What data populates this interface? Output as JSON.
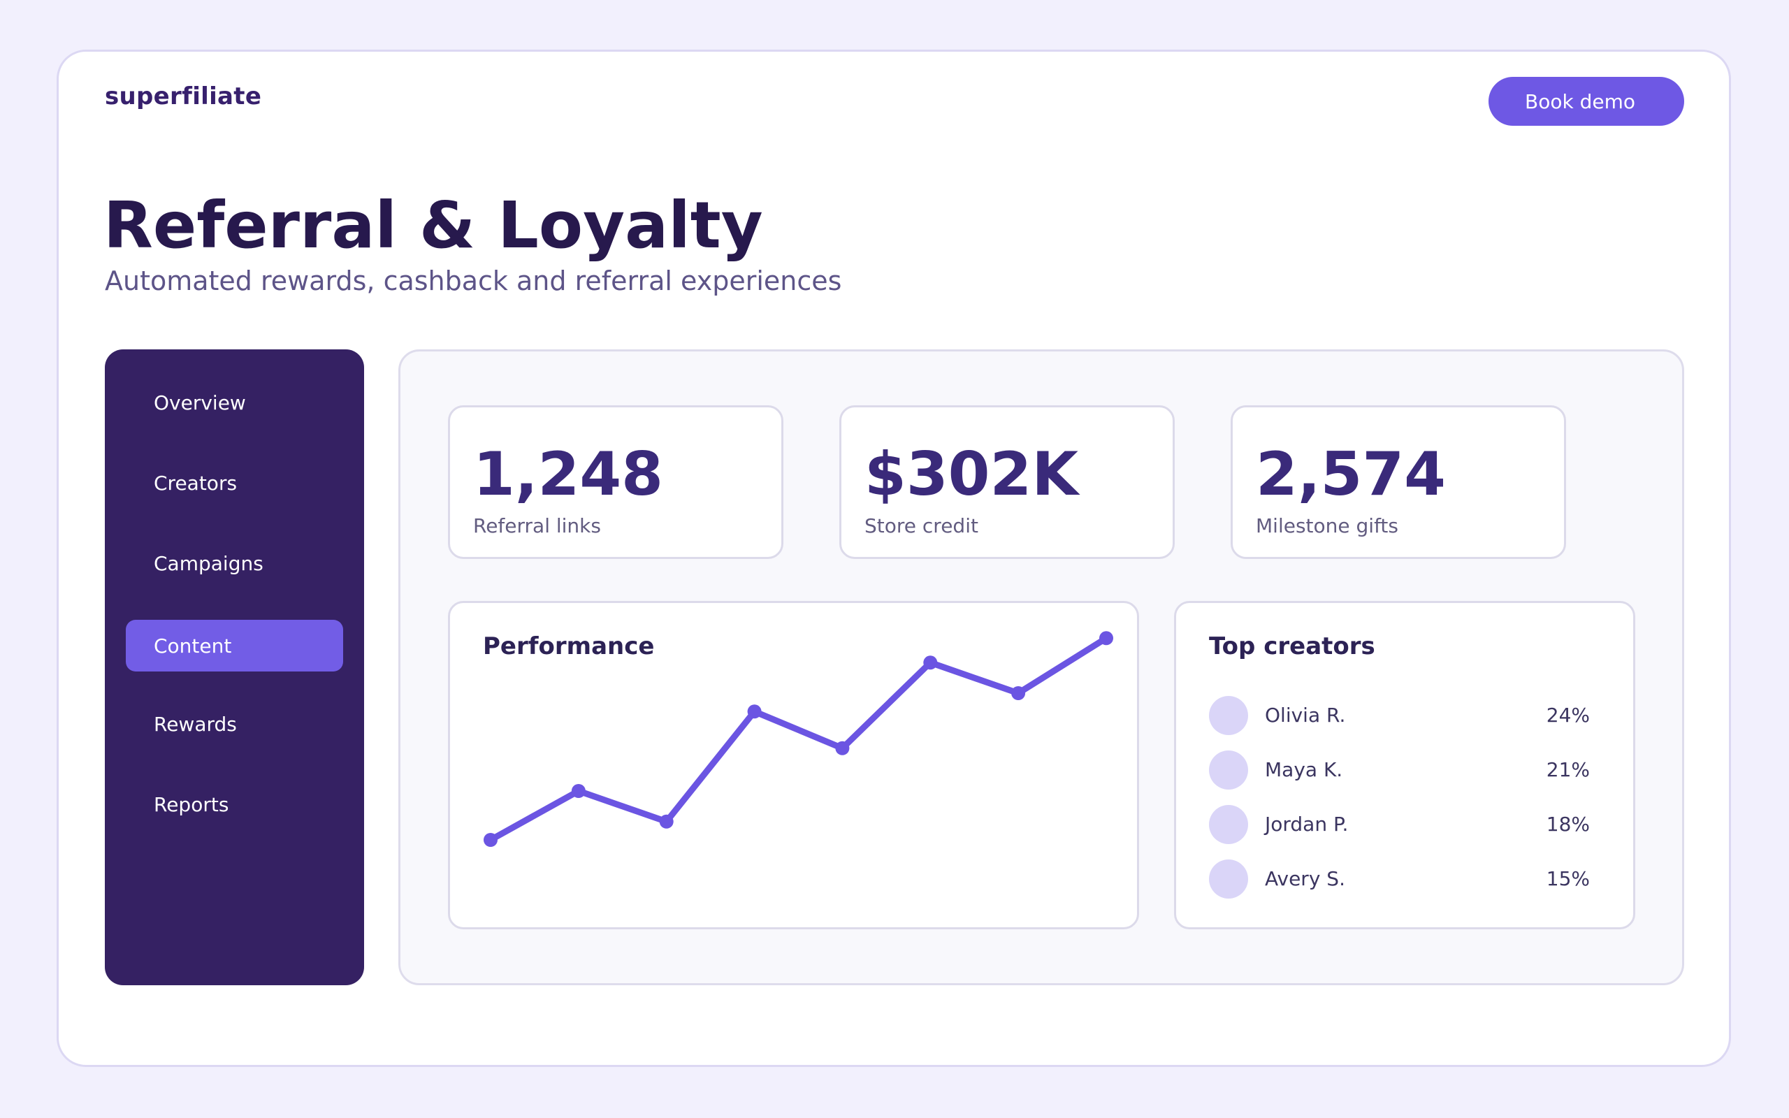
{
  "header": {
    "brand": "superfiliate",
    "demo_button": "Book demo"
  },
  "hero": {
    "title": "Referral & Loyalty",
    "subtitle": "Automated rewards, cashback and referral experiences"
  },
  "sidebar": {
    "items": [
      {
        "label": "Overview",
        "active": false
      },
      {
        "label": "Creators",
        "active": false
      },
      {
        "label": "Campaigns",
        "active": false
      },
      {
        "label": "Content",
        "active": true
      },
      {
        "label": "Rewards",
        "active": false
      },
      {
        "label": "Reports",
        "active": false
      }
    ]
  },
  "stats": [
    {
      "value": "1,248",
      "label": "Referral links"
    },
    {
      "value": "$302K",
      "label": "Store credit"
    },
    {
      "value": "2,574",
      "label": "Milestone gifts"
    }
  ],
  "performance": {
    "title": "Performance"
  },
  "chart_data": {
    "type": "line",
    "title": "Performance",
    "x": [
      1,
      2,
      3,
      4,
      5,
      6,
      7,
      8
    ],
    "series": [
      {
        "values": [
          8,
          24,
          14,
          50,
          38,
          66,
          56,
          74
        ],
        "color": "#6b55e2"
      }
    ],
    "ylim": [
      0,
      80
    ],
    "grid": false
  },
  "top_creators": {
    "title": "Top creators",
    "rows": [
      {
        "name": "Olivia R.",
        "share": "24%"
      },
      {
        "name": "Maya K.",
        "share": "21%"
      },
      {
        "name": "Jordan P.",
        "share": "18%"
      },
      {
        "name": "Avery S.",
        "share": "15%"
      }
    ]
  },
  "colors": {
    "accent": "#6e58e4",
    "sidebar_bg": "#352163",
    "title_text": "#27194d",
    "page_bg": "#f2f0fd"
  }
}
